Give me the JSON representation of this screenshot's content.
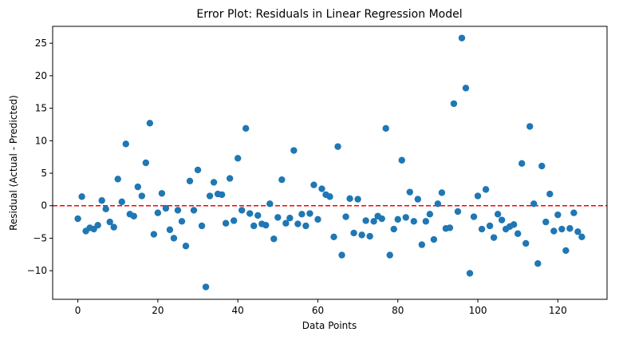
{
  "chart_data": {
    "type": "scatter",
    "title": "Error Plot: Residuals in Linear Regression Model",
    "xlabel": "Data Points",
    "ylabel": "Residual (Actual - Predicted)",
    "xlim": [
      -6.3,
      132.3
    ],
    "ylim": [
      -14.4,
      27.6
    ],
    "xticks": [
      0,
      20,
      40,
      60,
      80,
      100,
      120
    ],
    "yticks": [
      -10,
      -5,
      0,
      5,
      10,
      15,
      20,
      25
    ],
    "grid": false,
    "point_color": "#1f77b4",
    "reference_line": {
      "y": 0,
      "color": "#ff0000",
      "style": "dashed"
    },
    "x": [
      0,
      1,
      2,
      3,
      4,
      5,
      6,
      7,
      8,
      9,
      10,
      11,
      12,
      13,
      14,
      15,
      16,
      17,
      18,
      19,
      20,
      21,
      22,
      23,
      24,
      25,
      26,
      27,
      28,
      29,
      30,
      31,
      32,
      33,
      34,
      35,
      36,
      37,
      38,
      39,
      40,
      41,
      42,
      43,
      44,
      45,
      46,
      47,
      48,
      49,
      50,
      51,
      52,
      53,
      54,
      55,
      56,
      57,
      58,
      59,
      60,
      61,
      62,
      63,
      64,
      65,
      66,
      67,
      68,
      69,
      70,
      71,
      72,
      73,
      74,
      75,
      76,
      77,
      78,
      79,
      80,
      81,
      82,
      83,
      84,
      85,
      86,
      87,
      88,
      89,
      90,
      91,
      92,
      93,
      94,
      95,
      96,
      97,
      98,
      99,
      100,
      101,
      102,
      103,
      104,
      105,
      106,
      107,
      108,
      109,
      110,
      111,
      112,
      113,
      114,
      115,
      116,
      117,
      118,
      119,
      120,
      121,
      122,
      123,
      124,
      125,
      126
    ],
    "y": [
      -2.0,
      1.4,
      -3.9,
      -3.4,
      -3.6,
      -3.0,
      0.8,
      -0.5,
      -2.5,
      -3.3,
      4.1,
      0.6,
      9.5,
      -1.3,
      -1.6,
      2.9,
      1.5,
      6.6,
      12.7,
      -4.4,
      -1.1,
      1.9,
      -0.4,
      -3.7,
      -5.0,
      -0.7,
      -2.4,
      -6.2,
      3.8,
      -0.7,
      5.5,
      -3.1,
      -12.5,
      1.5,
      3.6,
      1.8,
      1.7,
      -2.7,
      4.2,
      -2.3,
      7.3,
      -0.7,
      11.9,
      -1.2,
      -3.1,
      -1.5,
      -2.8,
      -3.0,
      0.3,
      -5.1,
      -1.8,
      4.0,
      -2.7,
      -1.9,
      8.5,
      -2.8,
      -1.3,
      -3.1,
      -1.2,
      3.2,
      -2.1,
      2.6,
      1.7,
      1.4,
      -4.8,
      9.1,
      -7.6,
      -1.7,
      1.1,
      -4.2,
      1.0,
      -4.5,
      -2.3,
      -4.7,
      -2.4,
      -1.6,
      -2.0,
      11.9,
      -7.6,
      -3.6,
      -2.1,
      7.0,
      -1.8,
      2.1,
      -2.4,
      1.0,
      -6.0,
      -2.4,
      -1.3,
      -5.2,
      0.3,
      2.0,
      -3.5,
      -3.4,
      15.7,
      -0.9,
      25.8,
      18.1,
      -10.4,
      -1.7,
      1.5,
      -3.6,
      2.5,
      -3.1,
      -4.9,
      -1.3,
      -2.2,
      -3.6,
      -3.2,
      -2.9,
      -4.3,
      6.5,
      -5.8,
      12.2,
      0.3,
      -8.9,
      6.1,
      -2.5,
      1.8,
      -3.9,
      -1.4,
      -3.6,
      -6.9,
      -3.5,
      -1.1,
      -4.0,
      -4.8
    ]
  }
}
